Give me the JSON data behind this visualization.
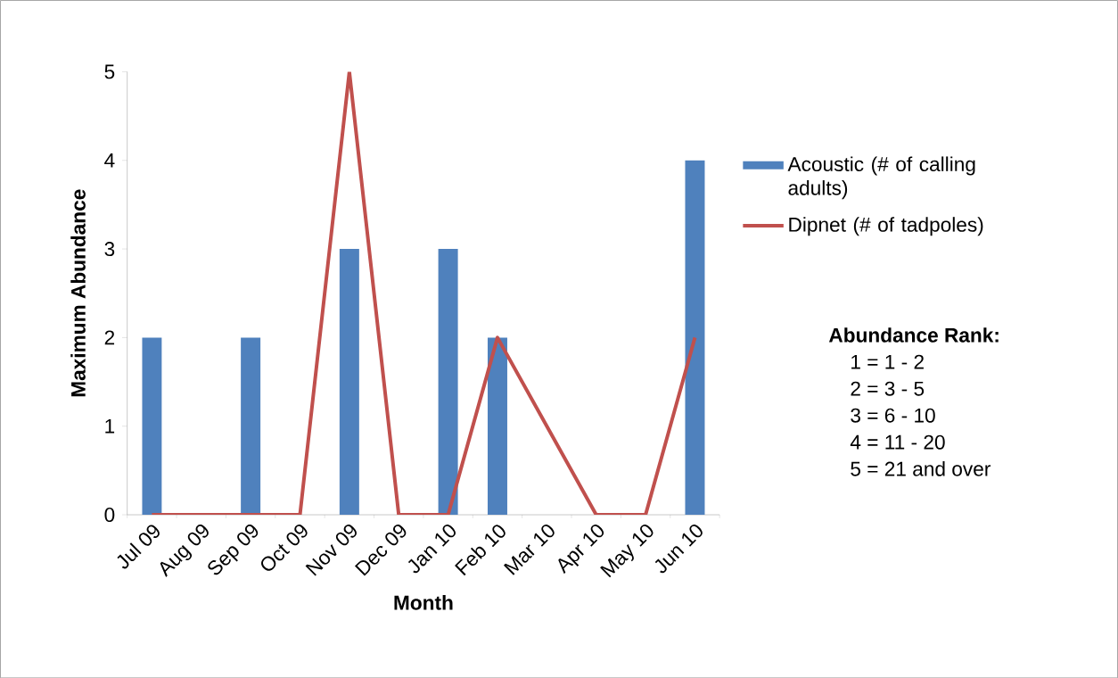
{
  "chart_data": {
    "type": "bar",
    "xlabel": "Month",
    "ylabel": "Maximum Abundance",
    "categories": [
      "Jul 09",
      "Aug 09",
      "Sep 09",
      "Oct 09",
      "Nov 09",
      "Dec 09",
      "Jan 10",
      "Feb 10",
      "Mar 10",
      "Apr 10",
      "May 10",
      "Jun 10"
    ],
    "series": [
      {
        "name": "Acoustic (# of calling adults)",
        "color": "#4f81bd",
        "values": [
          2,
          0,
          2,
          0,
          3,
          0,
          3,
          2,
          0,
          0,
          0,
          4
        ]
      },
      {
        "name": "Dipnet (# of tadpoles)",
        "type": "line",
        "color": "#c0504d",
        "values": [
          0,
          0,
          0,
          0,
          5,
          0,
          0,
          2,
          1,
          0,
          0,
          2
        ]
      }
    ],
    "ylim": [
      0,
      5
    ],
    "yticks": [
      0,
      1,
      2,
      3,
      4,
      5
    ],
    "grid": false,
    "legend": "right",
    "marker": "none",
    "line_style": "solid",
    "annotations": [
      "Abundance Rank:",
      "1 = 1 - 2",
      "2 = 3 - 5",
      "3 = 6 - 10",
      "4 = 11 - 20",
      "5 = 21 and over"
    ]
  }
}
